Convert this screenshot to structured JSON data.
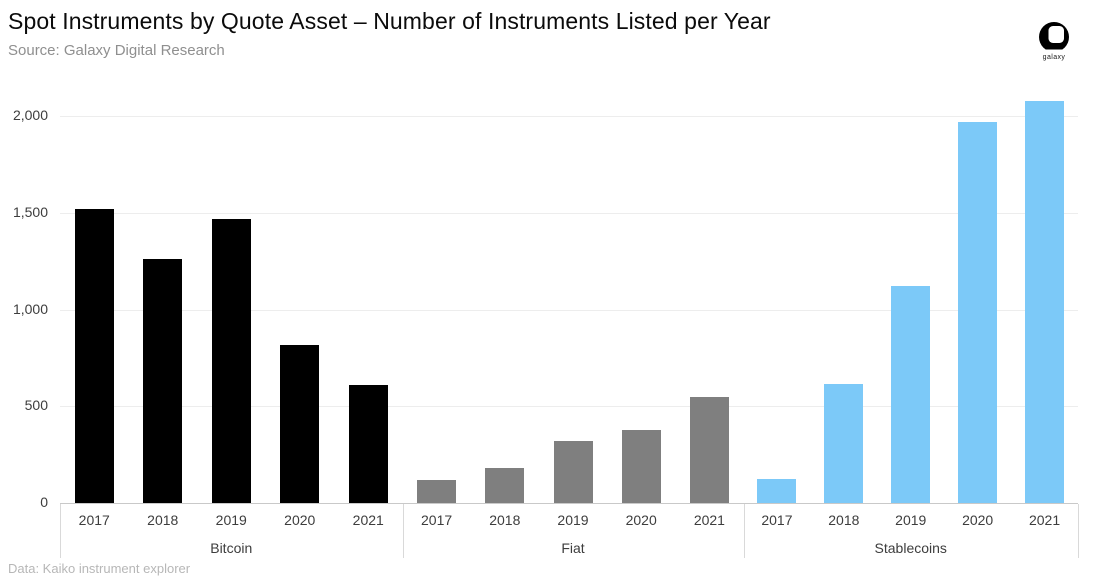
{
  "header": {
    "title": "Spot Instruments by Quote Asset – Number of Instruments Listed per Year",
    "source": "Source: Galaxy Digital Research",
    "logo_text": "galaxy"
  },
  "footer": {
    "credit": "Data: Kaiko instrument explorer"
  },
  "chart_data": {
    "type": "bar",
    "title": "Spot Instruments by Quote Asset – Number of Instruments Listed per Year",
    "subtitle": "Source: Galaxy Digital Research",
    "categories": [
      "2017",
      "2018",
      "2019",
      "2020",
      "2021"
    ],
    "series": [
      {
        "name": "Bitcoin",
        "color": "#000000",
        "values": [
          1520,
          1260,
          1470,
          815,
          610
        ]
      },
      {
        "name": "Fiat",
        "color": "#7f7f7f",
        "values": [
          120,
          180,
          320,
          375,
          550
        ]
      },
      {
        "name": "Stablecoins",
        "color": "#7cc9f8",
        "values": [
          125,
          615,
          1120,
          1970,
          2080
        ]
      }
    ],
    "y_ticks": [
      0,
      500,
      1000,
      1500,
      2000
    ],
    "y_tick_labels": [
      "0",
      "500",
      "1,000",
      "1,500",
      "2,000"
    ],
    "ylim": [
      0,
      2100
    ],
    "xlabel": "",
    "ylabel": "",
    "grid": true,
    "legend": "none",
    "annotations": []
  },
  "colors": {
    "background": "#ffffff",
    "gridline": "#ededed",
    "axis_line": "#c9c9c9",
    "separator": "#d9d9d9",
    "tick_text": "#3d3d3d",
    "subtitle_text": "#8f8f8f",
    "footer_text": "#b7b7b7"
  }
}
